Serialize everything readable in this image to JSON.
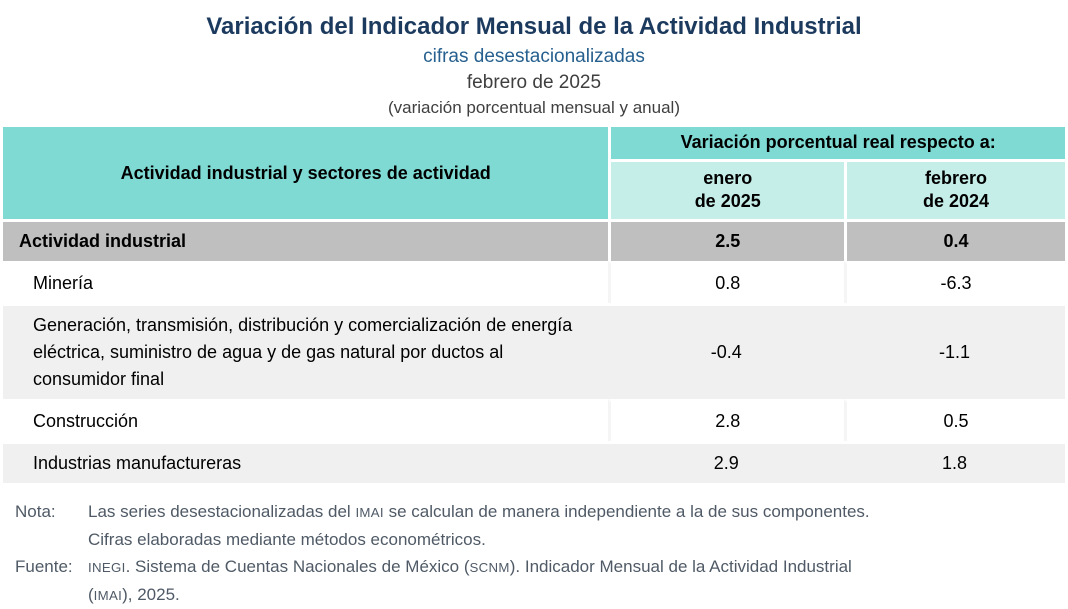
{
  "header": {
    "title": "Variación del Indicador Mensual de la Actividad Industrial",
    "subtitle": "cifras desestacionalizadas",
    "period": "febrero de 2025",
    "caption": "(variación porcentual mensual y anual)"
  },
  "table": {
    "col_header": "Actividad industrial y sectores de actividad",
    "group_header": "Variación porcentual real respecto a:",
    "sub_headers": [
      {
        "line1": "enero",
        "line2": "de 2025"
      },
      {
        "line1": "febrero",
        "line2": "de 2024"
      }
    ],
    "rows": [
      {
        "label": "Actividad industrial",
        "enero": "2.5",
        "febrero": "0.4"
      },
      {
        "label": "Minería",
        "enero": "0.8",
        "febrero": "-6.3"
      },
      {
        "label": "Generación, transmisión, distribución y comercialización de energía eléctrica, suministro de agua y de gas natural por ductos al consumidor final",
        "enero": "-0.4",
        "febrero": "-1.1"
      },
      {
        "label": "Construcción",
        "enero": "2.8",
        "febrero": "0.5"
      },
      {
        "label": "Industrias manufactureras",
        "enero": "2.9",
        "febrero": "1.8"
      }
    ]
  },
  "notes": [
    {
      "label": "Nota:",
      "lines": [
        [
          {
            "t": "Las series desestacionalizadas del "
          },
          {
            "t": "IMAI",
            "sc": true
          },
          {
            "t": " se calculan de manera independiente a la de sus componentes."
          }
        ],
        [
          {
            "t": "Cifras elaboradas mediante métodos econométricos."
          }
        ]
      ]
    },
    {
      "label": "Fuente:",
      "lines": [
        [
          {
            "t": "INEGI",
            "sc": true
          },
          {
            "t": ". Sistema de Cuentas Nacionales de México ("
          },
          {
            "t": "SCNM",
            "sc": true
          },
          {
            "t": "). Indicador Mensual de la Actividad Industrial"
          }
        ],
        [
          {
            "t": "("
          },
          {
            "t": "IMAI",
            "sc": true
          },
          {
            "t": "), 2025."
          }
        ]
      ]
    }
  ],
  "colors": {
    "header_teal": "#7EDAD3",
    "subheader_teal_light": "#C6EEE9",
    "total_row_gray": "#BFBFBF",
    "alt_row_gray": "#F0F0F0",
    "title_navy": "#1C3A5E",
    "subtitle_blue": "#27608F",
    "notes_gray": "#4F5A66"
  },
  "chart_data": {
    "type": "table",
    "title": "Variación del Indicador Mensual de la Actividad Industrial",
    "subtitle": "cifras desestacionalizadas",
    "period": "febrero de 2025",
    "units": "(variación porcentual mensual y anual)",
    "group_header": "Variación porcentual real respecto a:",
    "columns": [
      "Actividad industrial y sectores de actividad",
      "enero de 2025",
      "febrero de 2024"
    ],
    "rows": [
      {
        "sector": "Actividad industrial",
        "vs_enero_2025": 2.5,
        "vs_febrero_2024": 0.4,
        "is_total": true
      },
      {
        "sector": "Minería",
        "vs_enero_2025": 0.8,
        "vs_febrero_2024": -6.3,
        "is_total": false
      },
      {
        "sector": "Generación, transmisión, distribución y comercialización de energía eléctrica, suministro de agua y de gas natural por ductos al consumidor final",
        "vs_enero_2025": -0.4,
        "vs_febrero_2024": -1.1,
        "is_total": false
      },
      {
        "sector": "Construcción",
        "vs_enero_2025": 2.8,
        "vs_febrero_2024": 0.5,
        "is_total": false
      },
      {
        "sector": "Industrias manufactureras",
        "vs_enero_2025": 2.9,
        "vs_febrero_2024": 1.8,
        "is_total": false
      }
    ],
    "source": "INEGI. Sistema de Cuentas Nacionales de México (SCNM). Indicador Mensual de la Actividad Industrial (IMAI), 2025."
  }
}
